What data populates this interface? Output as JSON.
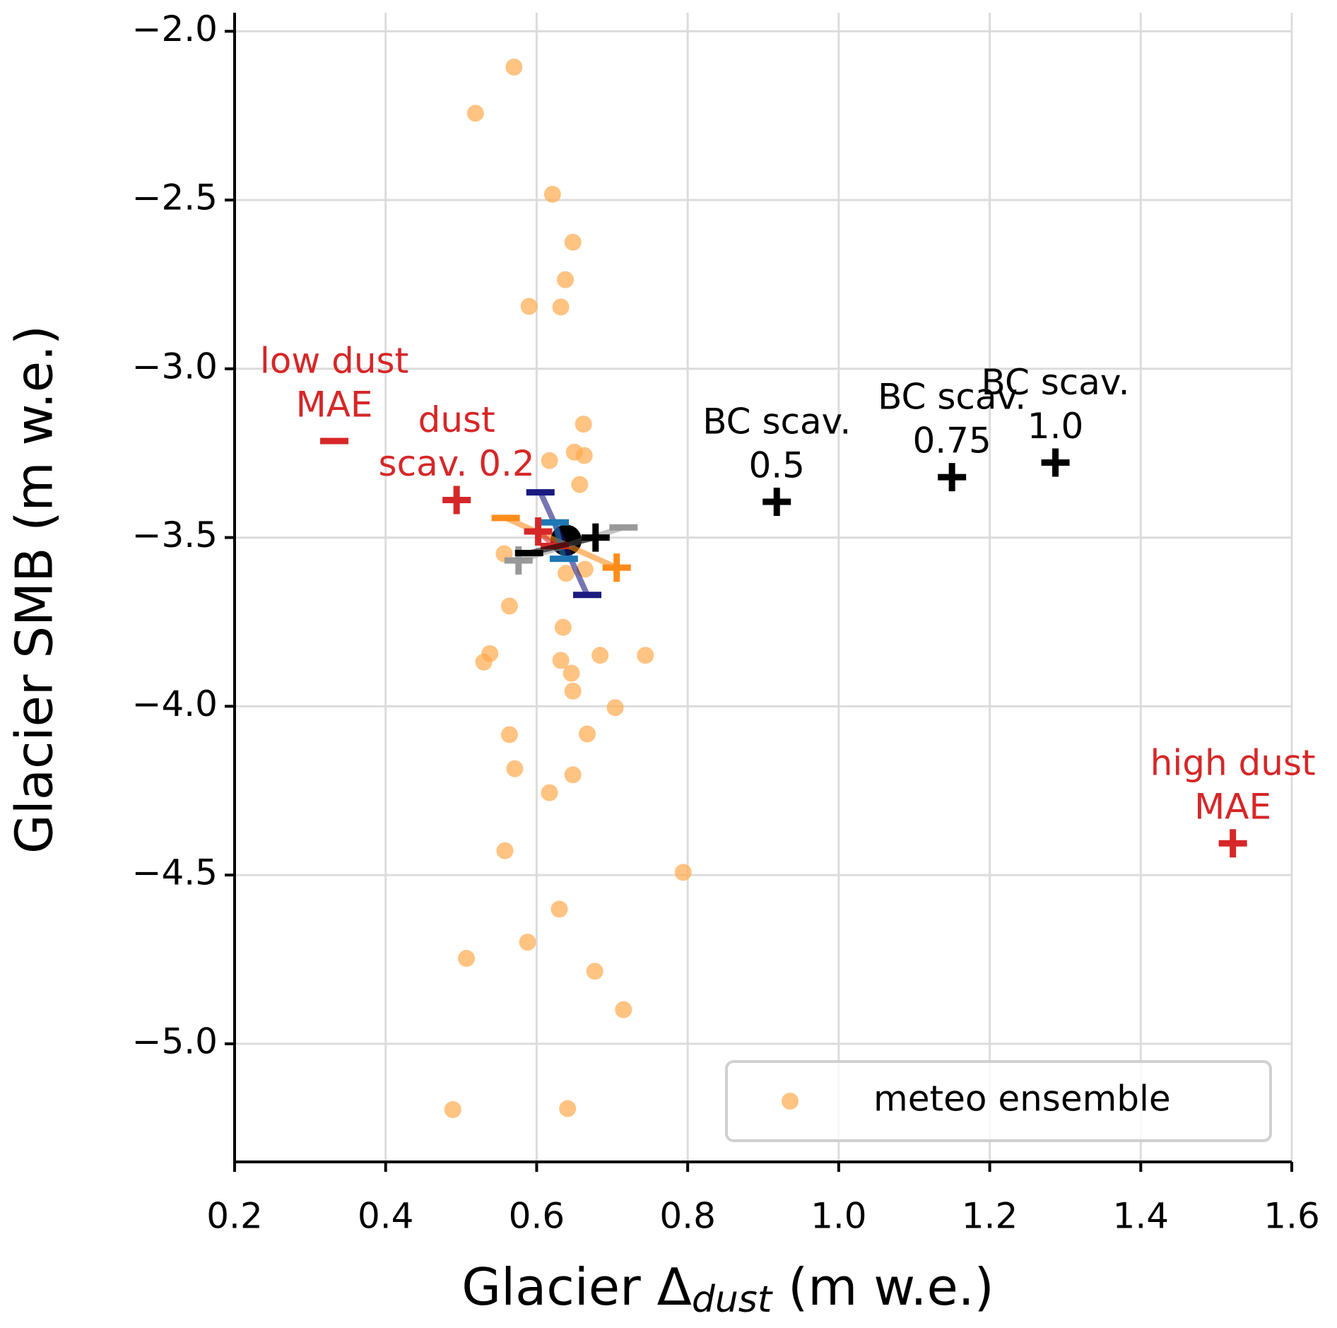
{
  "chart_data": {
    "type": "scatter",
    "xlabel": {
      "main": "Glacier Δ",
      "sub": "dust",
      "unit": " (m w.e.)"
    },
    "ylabel": "Glacier SMB (m w.e.)",
    "xlim": [
      0.2,
      1.6
    ],
    "ylim": [
      -5.35,
      -1.945
    ],
    "xticks": [
      0.2,
      0.4,
      0.6,
      0.8,
      {
        "value": 1,
        "label": "1.0"
      },
      1.2,
      1.4,
      1.6
    ],
    "yticks": [
      {
        "value": -2,
        "label": "−2.0"
      },
      {
        "value": -2.5,
        "label": "−2.5"
      },
      {
        "value": -3,
        "label": "−3.0"
      },
      {
        "value": -3.5,
        "label": "−3.5"
      },
      {
        "value": -4,
        "label": "−4.0"
      },
      {
        "value": -4.5,
        "label": "−4.5"
      },
      {
        "value": -5,
        "label": "−5.0"
      }
    ],
    "grid": true,
    "legend": "lower right",
    "series": [
      {
        "name": "meteo ensemble",
        "color": "#ffa94d",
        "x": [
          0.57,
          0.519,
          0.621,
          0.648,
          0.638,
          0.59,
          0.632,
          0.662,
          0.617,
          0.65,
          0.663,
          0.657,
          0.557,
          0.639,
          0.664,
          0.564,
          0.635,
          0.538,
          0.53,
          0.632,
          0.646,
          0.684,
          0.744,
          0.648,
          0.704,
          0.564,
          0.667,
          0.571,
          0.648,
          0.617,
          0.558,
          0.794,
          0.63,
          0.588,
          0.507,
          0.677,
          0.715,
          0.489,
          0.641
        ],
        "values": [
          -2.106,
          -2.243,
          -2.483,
          -2.625,
          -2.736,
          -2.815,
          -2.817,
          -3.164,
          -3.272,
          -3.247,
          -3.257,
          -3.343,
          -3.548,
          -3.606,
          -3.594,
          -3.703,
          -3.766,
          -3.844,
          -3.869,
          -3.864,
          -3.902,
          -3.849,
          -3.849,
          -3.955,
          -4.004,
          -4.084,
          -4.082,
          -4.185,
          -4.203,
          -4.256,
          -4.428,
          -4.492,
          -4.601,
          -4.699,
          -4.747,
          -4.785,
          -4.899,
          -5.195,
          -5.192
        ]
      }
    ],
    "segments": [
      {
        "color": "#1a1a80",
        "x": [
          0.605,
          0.667
        ],
        "values": [
          -3.366,
          -3.67
        ],
        "markers": [
          "_",
          "_"
        ]
      },
      {
        "color": "#ff8c1a",
        "x": [
          0.559,
          0.706
        ],
        "values": [
          -3.442,
          -3.589
        ],
        "markers": [
          "_",
          "+"
        ]
      },
      {
        "color": "#999999",
        "x": [
          0.576,
          0.715
        ],
        "values": [
          -3.568,
          -3.47
        ],
        "markers": [
          "+",
          "_"
        ]
      },
      {
        "color": "#1f77b4",
        "x": [
          0.624,
          0.636
        ],
        "values": [
          -3.455,
          -3.563
        ],
        "markers": [
          "_",
          "_"
        ]
      },
      {
        "color": "#d62728",
        "x": [
          0.602,
          0.624
        ],
        "values": [
          -3.482,
          -3.525
        ],
        "markers": [
          "+",
          "_"
        ]
      },
      {
        "color": "#000000",
        "x": [
          0.59,
          0.678
        ],
        "values": [
          -3.546,
          -3.5
        ],
        "markers": [
          "_",
          "+"
        ]
      }
    ],
    "center": {
      "color": "#000000",
      "x": 0.639,
      "value": -3.508
    },
    "points": [
      {
        "color": "#d62728",
        "marker": "_",
        "x": 0.332,
        "value": -3.214,
        "label": [
          "low dust",
          "MAE"
        ]
      },
      {
        "color": "#d62728",
        "marker": "+",
        "x": 0.494,
        "value": -3.389,
        "label": [
          "dust",
          "scav. 0.2"
        ]
      },
      {
        "color": "#000000",
        "marker": "+",
        "x": 0.918,
        "value": -3.394,
        "label": [
          "BC scav.",
          "0.5"
        ]
      },
      {
        "color": "#000000",
        "marker": "+",
        "x": 1.15,
        "value": -3.321,
        "label": [
          "BC scav.",
          "0.75"
        ]
      },
      {
        "color": "#000000",
        "marker": "+",
        "x": 1.287,
        "value": -3.278,
        "label": [
          "BC scav.",
          "1.0"
        ]
      },
      {
        "color": "#d62728",
        "marker": "+",
        "x": 1.522,
        "value": -4.406,
        "label": [
          "high dust",
          "MAE"
        ]
      }
    ]
  }
}
